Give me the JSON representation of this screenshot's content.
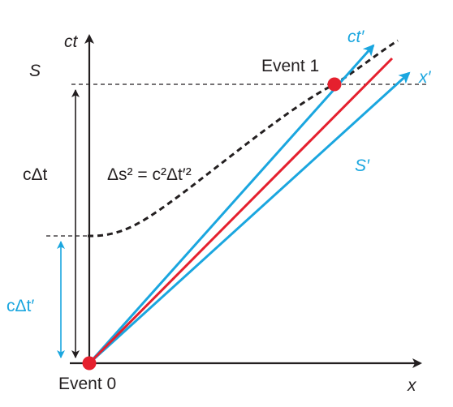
{
  "labels": {
    "ct_axis": "ct",
    "x_axis": "x",
    "frame_s": "S",
    "ct_prime_axis": "ct′",
    "x_prime_axis": "x′",
    "frame_s_prime": "S′",
    "event_1": "Event 1",
    "event_0": "Event 0",
    "c_delta_t": "cΔt",
    "c_delta_t_prime": "cΔt′",
    "interval": "Δs² = c²Δt′²"
  },
  "colors": {
    "axis": "#231f20",
    "primed_axes": "#1aa6df",
    "worldline": "#e5202e",
    "event_dot": "#e5202e",
    "hyperbola": "#231f20"
  }
}
